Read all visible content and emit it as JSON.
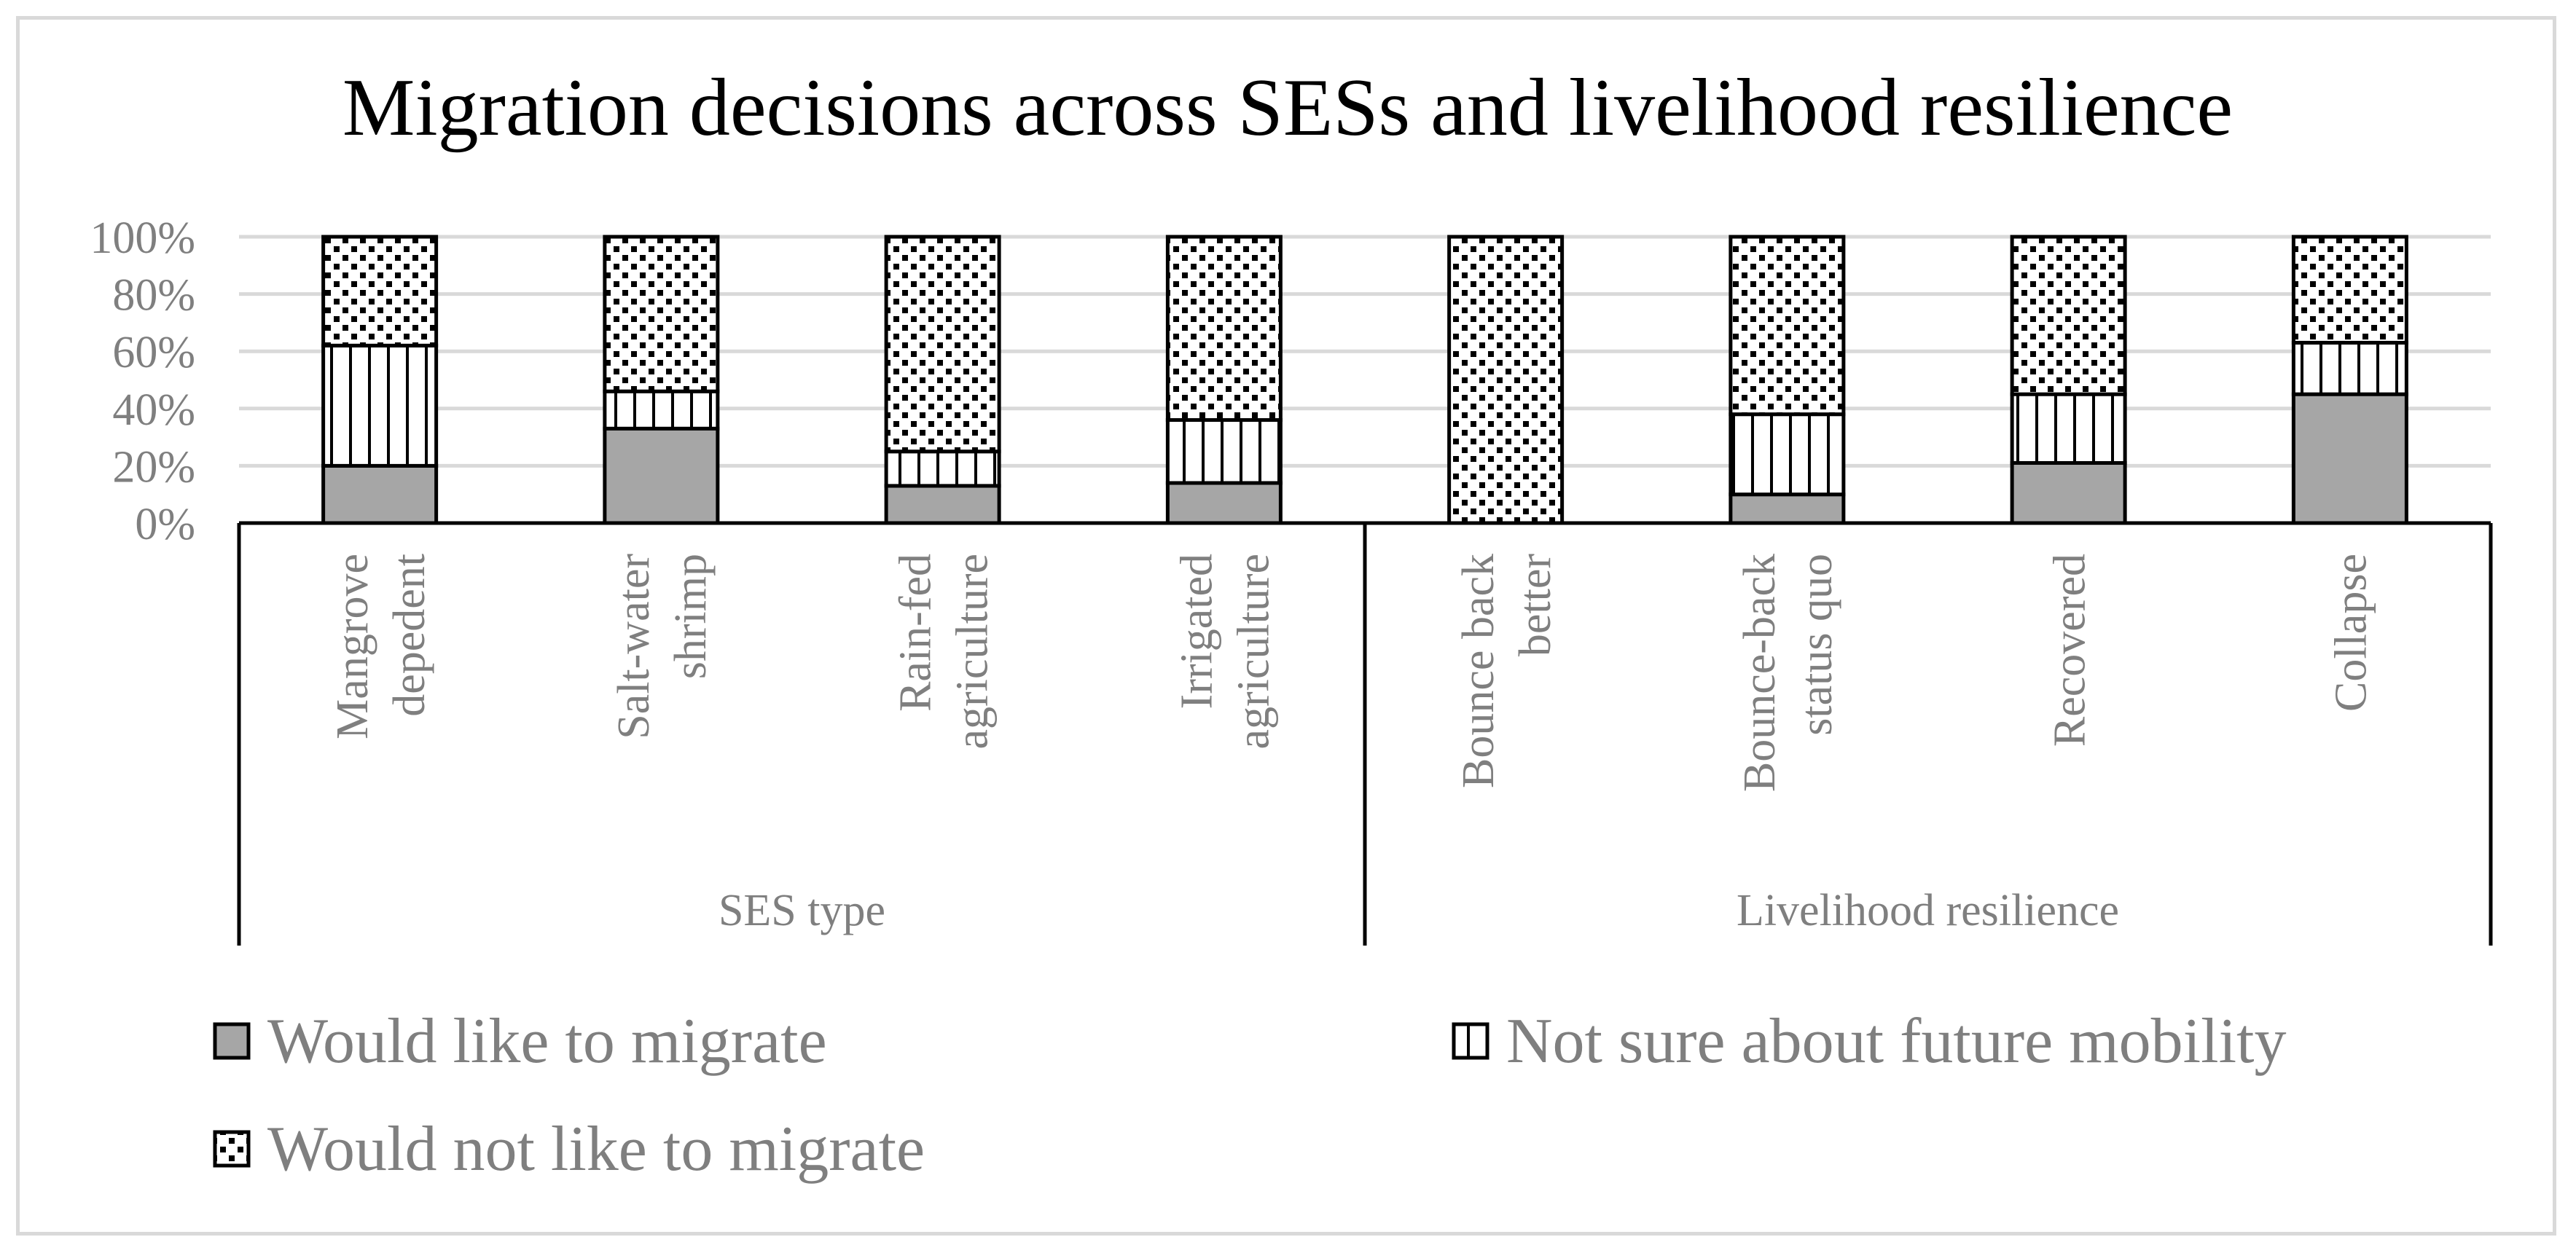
{
  "chart_data": {
    "type": "bar",
    "stacked": "percent",
    "title": "Migration decisions across SESs and livelihood resilience",
    "ylim": [
      0,
      100
    ],
    "y_ticks": [
      "0%",
      "20%",
      "40%",
      "60%",
      "80%",
      "100%"
    ],
    "groups": [
      {
        "label": "SES type",
        "categories": [
          "Mangrove dependent",
          "Salt-water shrimp",
          "Rain-fed agriculture",
          "Irrigated agriculture"
        ]
      },
      {
        "label": "Livelihood resilience",
        "categories": [
          "Bounce back better",
          "Bounce-back status quo",
          "Recovered",
          "Collapse"
        ]
      }
    ],
    "categories": [
      [
        "Mangrove",
        "depedent"
      ],
      [
        "Salt-water",
        "shrimp"
      ],
      [
        "Rain-fed",
        "agriculture"
      ],
      [
        "Irrigated",
        "agriculture"
      ],
      [
        "Bounce back",
        "better"
      ],
      [
        "Bounce-back",
        "status quo"
      ],
      [
        "Recovered"
      ],
      [
        "Collapse"
      ]
    ],
    "series": [
      {
        "name": "Would like to migrate",
        "pattern": "solid-gray",
        "color": "#a6a6a6",
        "values": [
          20,
          33,
          13,
          14,
          0,
          10,
          21,
          45
        ]
      },
      {
        "name": "Not sure about future mobility",
        "pattern": "vertical-lines",
        "color": "#ffffff",
        "values": [
          42,
          13,
          12,
          22,
          0,
          28,
          24,
          18
        ]
      },
      {
        "name": "Would not like to migrate",
        "pattern": "checker-dots",
        "color": "#ffffff",
        "values": [
          38,
          54,
          75,
          64,
          100,
          62,
          55,
          37
        ]
      }
    ],
    "legend_position": "bottom",
    "gridlines": true
  }
}
